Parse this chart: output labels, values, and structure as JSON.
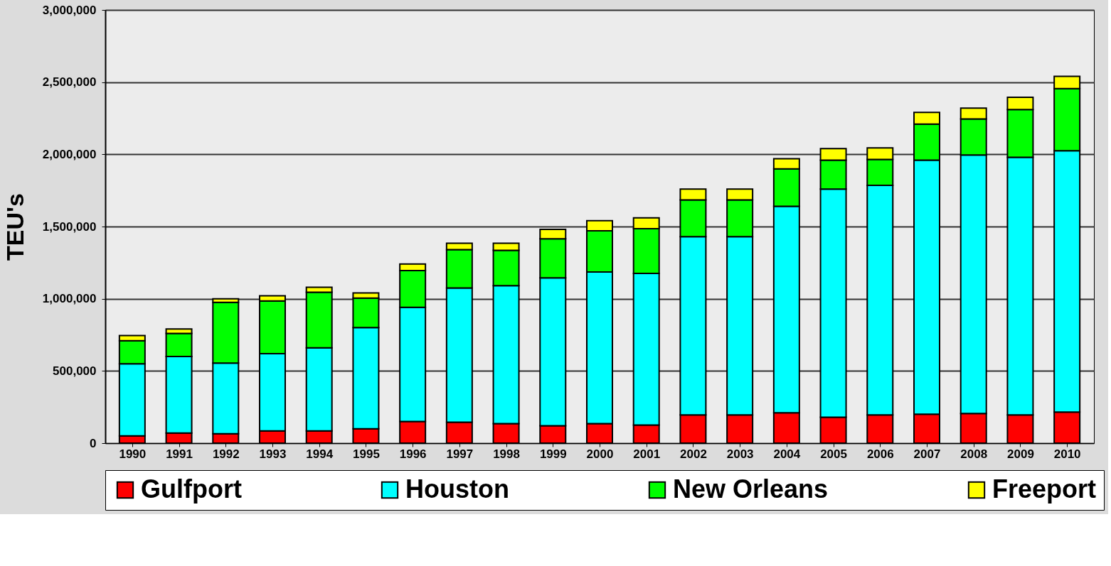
{
  "chart_data": {
    "type": "bar",
    "stacked": true,
    "ylabel": "TEU's",
    "categories": [
      "1990",
      "1991",
      "1992",
      "1993",
      "1994",
      "1995",
      "1996",
      "1997",
      "1998",
      "1999",
      "2000",
      "2001",
      "2002",
      "2003",
      "2004",
      "2005",
      "2006",
      "2007",
      "2008",
      "2009",
      "2010"
    ],
    "series": [
      {
        "name": "Gulfport",
        "color": "#ff0000",
        "values": [
          50000,
          70000,
          65000,
          85000,
          85000,
          100000,
          150000,
          145000,
          135000,
          120000,
          135000,
          125000,
          195000,
          195000,
          210000,
          180000,
          195000,
          200000,
          205000,
          195000,
          215000
        ]
      },
      {
        "name": "Houston",
        "color": "#00ffff",
        "values": [
          500000,
          530000,
          490000,
          535000,
          575000,
          700000,
          790000,
          930000,
          955000,
          1025000,
          1050000,
          1050000,
          1235000,
          1235000,
          1430000,
          1580000,
          1590000,
          1760000,
          1790000,
          1785000,
          1810000
        ]
      },
      {
        "name": "New Orleans",
        "color": "#00ff00",
        "values": [
          160000,
          160000,
          420000,
          365000,
          385000,
          205000,
          255000,
          265000,
          245000,
          270000,
          285000,
          310000,
          255000,
          255000,
          260000,
          200000,
          180000,
          250000,
          250000,
          330000,
          430000
        ]
      },
      {
        "name": "Freeport",
        "color": "#ffff00",
        "values": [
          35000,
          30000,
          25000,
          35000,
          35000,
          35000,
          45000,
          45000,
          50000,
          65000,
          70000,
          75000,
          75000,
          75000,
          70000,
          80000,
          80000,
          80000,
          75000,
          85000,
          85000
        ]
      }
    ],
    "ylim": [
      0,
      3000000
    ],
    "yticks": [
      0,
      {
        "value": 500000,
        "label": "500,000"
      },
      {
        "value": 1000000,
        "label": "1,000,000"
      },
      {
        "value": 1500000,
        "label": "1,500,000"
      },
      {
        "value": 2000000,
        "label": "2,000,000"
      },
      {
        "value": 2500000,
        "label": "2,500,000"
      },
      {
        "value": 3000000,
        "label": "3,000,000"
      }
    ],
    "grid": "y",
    "legend": "bottom"
  }
}
